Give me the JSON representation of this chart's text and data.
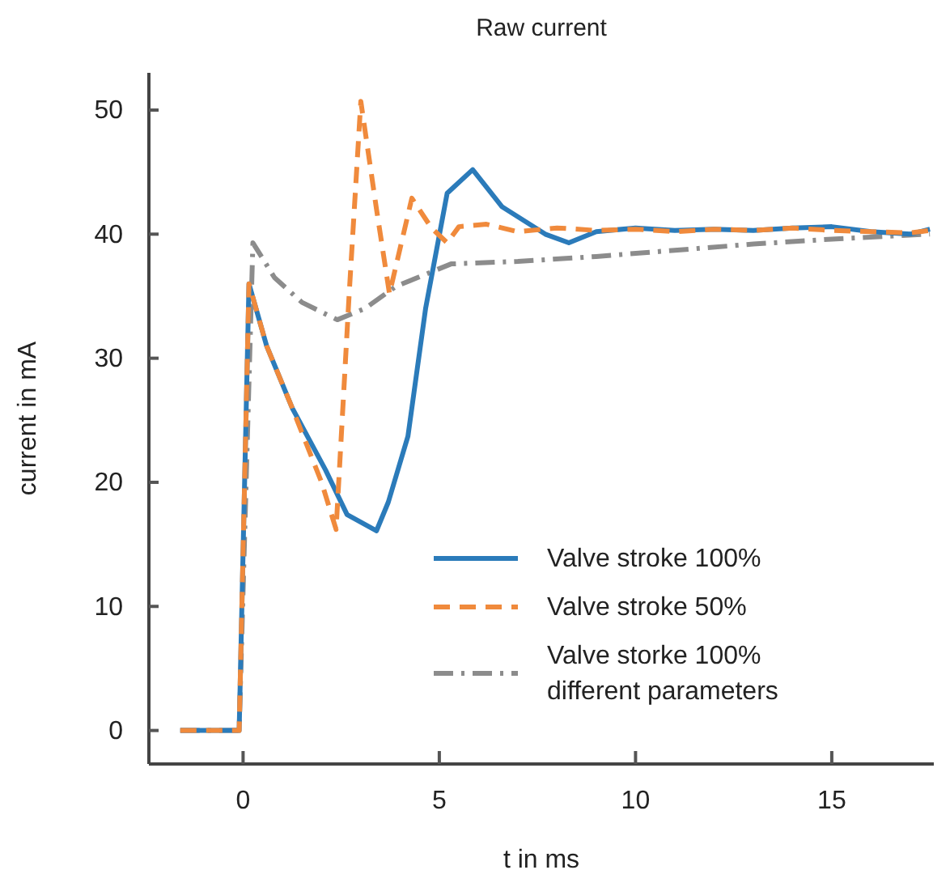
{
  "chart_data": {
    "type": "line",
    "title": "Raw current",
    "xlabel": "t in ms",
    "ylabel": "current in mA",
    "xlim": [
      -2.4,
      17.6
    ],
    "xticks": [
      0,
      5,
      10,
      15
    ],
    "ylim": [
      -2.7,
      53
    ],
    "yticks": [
      0,
      10,
      20,
      30,
      40,
      50
    ],
    "grid": false,
    "legend": "bottom right",
    "series": [
      {
        "name": "Valve stroke 100%",
        "color": "#2b7bba",
        "line_style": "solid",
        "x": [
          -1.6,
          -0.1,
          0.15,
          0.6,
          1.25,
          2.1,
          2.65,
          3.4,
          3.7,
          4.2,
          4.65,
          5.2,
          5.85,
          6.6,
          7.7,
          8.3,
          9,
          10,
          11,
          12,
          13,
          14,
          15,
          16,
          17,
          17.5
        ],
        "values": [
          0,
          0,
          36,
          31,
          26,
          21,
          17.4,
          16.1,
          18.4,
          23.7,
          34,
          43.3,
          45.2,
          42.2,
          40,
          39.3,
          40.2,
          40.5,
          40.3,
          40.4,
          40.3,
          40.5,
          40.6,
          40.2,
          40,
          40.4
        ]
      },
      {
        "name": "Valve stroke 50%",
        "color": "#f08a3c",
        "line_style": "dashed",
        "x": [
          -1.6,
          -0.1,
          0.15,
          0.6,
          1.25,
          2.0,
          2.37,
          2.7,
          3.0,
          3.4,
          3.73,
          4.3,
          4.8,
          5.2,
          5.5,
          6.2,
          7,
          8,
          9,
          10,
          11,
          12,
          13,
          14,
          15,
          16,
          17,
          17.5
        ],
        "values": [
          0,
          0,
          36,
          31,
          26,
          20,
          16.2,
          35,
          50.7,
          42,
          35.2,
          42.9,
          40.5,
          39.3,
          40.6,
          40.8,
          40.2,
          40.5,
          40.3,
          40.4,
          40.2,
          40.4,
          40.3,
          40.5,
          40.3,
          40.2,
          40.1,
          40.3
        ]
      },
      {
        "name": "Valve storke 100%\ndifferent parameters",
        "color": "#8c8c8c",
        "line_style": "dashdot",
        "x": [
          -1.6,
          -0.1,
          0.25,
          0.8,
          1.5,
          2.4,
          3.1,
          3.9,
          5.3,
          7,
          9,
          11,
          13,
          15,
          17.5
        ],
        "values": [
          0,
          0,
          39.3,
          36.5,
          34.5,
          33.1,
          34,
          35.8,
          37.6,
          37.8,
          38.2,
          38.7,
          39.2,
          39.6,
          40
        ]
      }
    ]
  }
}
